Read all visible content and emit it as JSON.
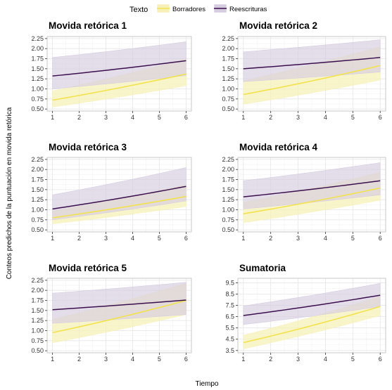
{
  "legend": {
    "title": "Texto",
    "entries": [
      {
        "name": "Borradores",
        "color": "#f2e24d"
      },
      {
        "name": "Reescrituras",
        "color": "#3b0f4d"
      }
    ]
  },
  "xlabel": "Tiempo",
  "ylabel": "Conteos predichos de la puntuación en movida retórica",
  "colors": {
    "borradores_line": "#f2e24d",
    "borradores_band": "#f7f1b8",
    "reescrituras_line": "#3b0f4d",
    "reescrituras_band": "#d6cce0",
    "grid_major": "#e6e6e6",
    "grid_minor": "#f3f3f3",
    "panel_border": "#bdbdbd"
  },
  "chart_data": [
    {
      "type": "line",
      "title": "Movida retórica 1",
      "x": [
        1,
        6
      ],
      "ylim": [
        0.45,
        2.3
      ],
      "yticks": [
        "0.50",
        "0.75",
        "1.00",
        "1.25",
        "1.50",
        "1.75",
        "2.00",
        "2.25"
      ],
      "xticks": [
        "1",
        "2",
        "3",
        "4",
        "5",
        "6"
      ],
      "series": [
        {
          "name": "Borradores",
          "values": [
            0.72,
            1.37
          ],
          "lower": [
            0.55,
            1.08
          ],
          "upper": [
            0.95,
            1.75
          ]
        },
        {
          "name": "Reescrituras",
          "values": [
            1.32,
            1.7
          ],
          "lower": [
            1.0,
            1.33
          ],
          "upper": [
            1.78,
            2.17
          ]
        }
      ]
    },
    {
      "type": "line",
      "title": "Movida retórica 2",
      "x": [
        1,
        6
      ],
      "ylim": [
        0.45,
        2.3
      ],
      "yticks": [
        "0.50",
        "0.75",
        "1.00",
        "1.25",
        "1.50",
        "1.75",
        "2.00",
        "2.25"
      ],
      "xticks": [
        "1",
        "2",
        "3",
        "4",
        "5",
        "6"
      ],
      "series": [
        {
          "name": "Borradores",
          "values": [
            0.86,
            1.58
          ],
          "lower": [
            0.62,
            1.22
          ],
          "upper": [
            1.2,
            2.05
          ]
        },
        {
          "name": "Reescrituras",
          "values": [
            1.5,
            1.78
          ],
          "lower": [
            1.18,
            1.42
          ],
          "upper": [
            1.92,
            2.22
          ]
        }
      ]
    },
    {
      "type": "line",
      "title": "Movida retórica 3",
      "x": [
        1,
        6
      ],
      "ylim": [
        0.45,
        2.3
      ],
      "yticks": [
        "0.50",
        "0.75",
        "1.00",
        "1.25",
        "1.50",
        "1.75",
        "2.00",
        "2.25"
      ],
      "xticks": [
        "1",
        "2",
        "3",
        "4",
        "5",
        "6"
      ],
      "series": [
        {
          "name": "Borradores",
          "values": [
            0.8,
            1.33
          ],
          "lower": [
            0.65,
            1.08
          ],
          "upper": [
            0.97,
            1.62
          ]
        },
        {
          "name": "Reescrituras",
          "values": [
            1.02,
            1.58
          ],
          "lower": [
            0.75,
            1.22
          ],
          "upper": [
            1.37,
            2.05
          ]
        }
      ]
    },
    {
      "type": "line",
      "title": "Movida retórica 4",
      "x": [
        1,
        6
      ],
      "ylim": [
        0.45,
        2.3
      ],
      "yticks": [
        "0.50",
        "0.75",
        "1.00",
        "1.25",
        "1.50",
        "1.75",
        "2.00",
        "2.25"
      ],
      "xticks": [
        "1",
        "2",
        "3",
        "4",
        "5",
        "6"
      ],
      "series": [
        {
          "name": "Borradores",
          "values": [
            0.9,
            1.54
          ],
          "lower": [
            0.68,
            1.24
          ],
          "upper": [
            1.18,
            1.93
          ]
        },
        {
          "name": "Reescrituras",
          "values": [
            1.32,
            1.72
          ],
          "lower": [
            1.02,
            1.37
          ],
          "upper": [
            1.72,
            2.17
          ]
        }
      ]
    },
    {
      "type": "line",
      "title": "Movida retórica 5",
      "x": [
        1,
        6
      ],
      "ylim": [
        0.45,
        2.3
      ],
      "yticks": [
        "0.50",
        "0.75",
        "1.00",
        "1.25",
        "1.50",
        "1.75",
        "2.00",
        "2.25"
      ],
      "xticks": [
        "1",
        "2",
        "3",
        "4",
        "5",
        "6"
      ],
      "series": [
        {
          "name": "Borradores",
          "values": [
            0.95,
            1.75
          ],
          "lower": [
            0.7,
            1.4
          ],
          "upper": [
            1.28,
            2.18
          ]
        },
        {
          "name": "Reescrituras",
          "values": [
            1.52,
            1.76
          ],
          "lower": [
            1.18,
            1.4
          ],
          "upper": [
            1.93,
            2.2
          ]
        }
      ]
    },
    {
      "type": "line",
      "title": "Sumatoria",
      "x": [
        1,
        6
      ],
      "ylim": [
        3.3,
        9.9
      ],
      "yticks": [
        "3.5",
        "4.5",
        "5.5",
        "6.5",
        "7.5",
        "8.5",
        "9.5"
      ],
      "xticks": [
        "1",
        "2",
        "3",
        "4",
        "5",
        "6"
      ],
      "series": [
        {
          "name": "Borradores",
          "values": [
            4.2,
            7.4
          ],
          "lower": [
            3.65,
            6.6
          ],
          "upper": [
            4.85,
            8.3
          ]
        },
        {
          "name": "Reescrituras",
          "values": [
            6.6,
            8.4
          ],
          "lower": [
            5.8,
            7.4
          ],
          "upper": [
            7.45,
            9.45
          ]
        }
      ]
    }
  ]
}
